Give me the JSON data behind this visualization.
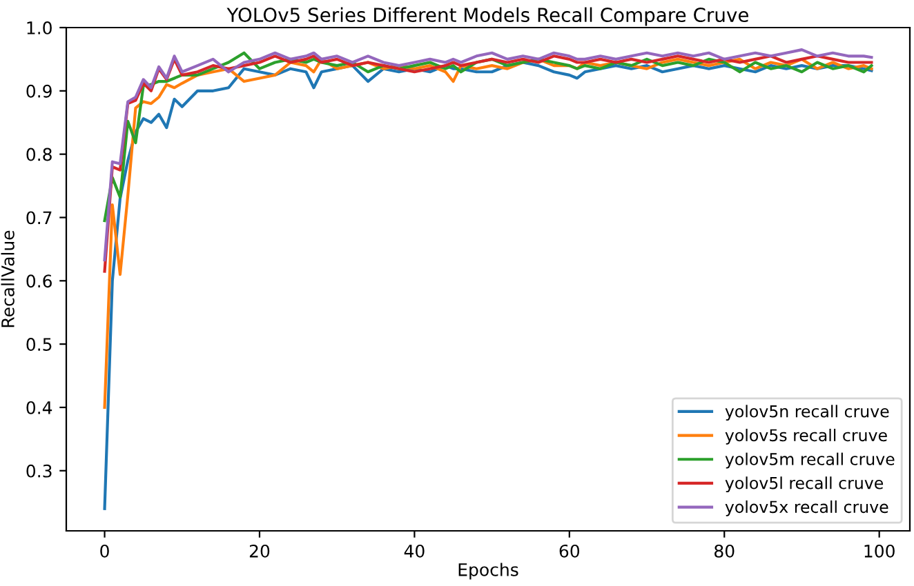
{
  "chart_data": {
    "type": "line",
    "title": "YOLOv5 Series Different Models Recall Compare Cruve",
    "xlabel": "Epochs",
    "ylabel": "RecallValue",
    "x": [
      0,
      1,
      2,
      3,
      4,
      5,
      6,
      7,
      8,
      9,
      10,
      12,
      14,
      16,
      18,
      20,
      22,
      24,
      26,
      27,
      28,
      30,
      32,
      34,
      36,
      38,
      40,
      42,
      44,
      45,
      46,
      48,
      50,
      52,
      54,
      56,
      58,
      60,
      61,
      62,
      64,
      66,
      68,
      70,
      72,
      74,
      76,
      78,
      80,
      82,
      84,
      86,
      88,
      90,
      92,
      94,
      96,
      98,
      99
    ],
    "series": [
      {
        "name": "yolov5n recall cruve",
        "color": "#1f77b4",
        "values": [
          0.24,
          0.6,
          0.73,
          0.79,
          0.835,
          0.856,
          0.85,
          0.863,
          0.842,
          0.887,
          0.875,
          0.9,
          0.9,
          0.905,
          0.935,
          0.93,
          0.925,
          0.935,
          0.93,
          0.905,
          0.93,
          0.935,
          0.94,
          0.915,
          0.935,
          0.93,
          0.935,
          0.93,
          0.94,
          0.935,
          0.935,
          0.93,
          0.93,
          0.94,
          0.945,
          0.94,
          0.93,
          0.925,
          0.92,
          0.93,
          0.935,
          0.94,
          0.935,
          0.94,
          0.93,
          0.935,
          0.94,
          0.935,
          0.94,
          0.935,
          0.93,
          0.94,
          0.935,
          0.94,
          0.935,
          0.94,
          0.94,
          0.935,
          0.932
        ]
      },
      {
        "name": "yolov5s recall cruve",
        "color": "#ff7f0e",
        "values": [
          0.4,
          0.72,
          0.61,
          0.735,
          0.873,
          0.883,
          0.88,
          0.89,
          0.91,
          0.905,
          0.912,
          0.925,
          0.93,
          0.935,
          0.915,
          0.92,
          0.925,
          0.945,
          0.94,
          0.93,
          0.95,
          0.935,
          0.94,
          0.945,
          0.935,
          0.94,
          0.935,
          0.94,
          0.93,
          0.915,
          0.94,
          0.935,
          0.94,
          0.935,
          0.945,
          0.95,
          0.94,
          0.94,
          0.935,
          0.945,
          0.94,
          0.945,
          0.94,
          0.935,
          0.945,
          0.95,
          0.945,
          0.94,
          0.945,
          0.95,
          0.935,
          0.945,
          0.94,
          0.95,
          0.935,
          0.945,
          0.935,
          0.94,
          0.935
        ]
      },
      {
        "name": "yolov5m recall cruve",
        "color": "#2ca02c",
        "values": [
          0.695,
          0.763,
          0.732,
          0.852,
          0.818,
          0.908,
          0.91,
          0.915,
          0.915,
          0.92,
          0.925,
          0.925,
          0.935,
          0.945,
          0.96,
          0.935,
          0.945,
          0.95,
          0.945,
          0.95,
          0.945,
          0.94,
          0.945,
          0.93,
          0.94,
          0.935,
          0.94,
          0.945,
          0.935,
          0.94,
          0.93,
          0.945,
          0.95,
          0.94,
          0.945,
          0.95,
          0.945,
          0.94,
          0.935,
          0.94,
          0.935,
          0.945,
          0.94,
          0.95,
          0.94,
          0.945,
          0.94,
          0.95,
          0.945,
          0.93,
          0.945,
          0.935,
          0.94,
          0.93,
          0.945,
          0.935,
          0.94,
          0.93,
          0.94
        ]
      },
      {
        "name": "yolov5l recall cruve",
        "color": "#d62728",
        "values": [
          0.615,
          0.78,
          0.775,
          0.88,
          0.885,
          0.912,
          0.9,
          0.935,
          0.918,
          0.95,
          0.925,
          0.93,
          0.94,
          0.935,
          0.94,
          0.945,
          0.955,
          0.945,
          0.95,
          0.955,
          0.945,
          0.95,
          0.94,
          0.945,
          0.94,
          0.935,
          0.93,
          0.935,
          0.94,
          0.945,
          0.94,
          0.945,
          0.95,
          0.945,
          0.95,
          0.945,
          0.955,
          0.95,
          0.945,
          0.945,
          0.95,
          0.945,
          0.95,
          0.945,
          0.95,
          0.955,
          0.95,
          0.945,
          0.95,
          0.945,
          0.95,
          0.955,
          0.945,
          0.95,
          0.955,
          0.95,
          0.945,
          0.945,
          0.945
        ]
      },
      {
        "name": "yolov5x recall cruve",
        "color": "#9467bd",
        "values": [
          0.633,
          0.788,
          0.785,
          0.883,
          0.89,
          0.918,
          0.905,
          0.938,
          0.92,
          0.955,
          0.93,
          0.94,
          0.95,
          0.93,
          0.945,
          0.95,
          0.96,
          0.95,
          0.955,
          0.96,
          0.95,
          0.955,
          0.945,
          0.955,
          0.945,
          0.94,
          0.945,
          0.95,
          0.945,
          0.95,
          0.945,
          0.955,
          0.96,
          0.95,
          0.955,
          0.95,
          0.96,
          0.955,
          0.95,
          0.95,
          0.955,
          0.95,
          0.955,
          0.96,
          0.955,
          0.96,
          0.955,
          0.96,
          0.95,
          0.955,
          0.96,
          0.955,
          0.96,
          0.965,
          0.955,
          0.96,
          0.955,
          0.955,
          0.953
        ]
      }
    ],
    "xlim": [
      -4.95,
      103.95
    ],
    "ylim": [
      0.205,
      1.0
    ],
    "xticks": [
      0,
      20,
      40,
      60,
      80,
      100
    ],
    "yticks": [
      {
        "value": 0.3,
        "label": "0.3"
      },
      {
        "value": 0.4,
        "label": "0.4"
      },
      {
        "value": 0.5,
        "label": "0.5"
      },
      {
        "value": 0.6,
        "label": "0.6"
      },
      {
        "value": 0.7,
        "label": "0.7"
      },
      {
        "value": 0.8,
        "label": "0.8"
      },
      {
        "value": 0.9,
        "label": "0.9"
      },
      {
        "value": 1.0,
        "label": "1.0"
      }
    ],
    "grid": false,
    "legend": "bottom right",
    "marker": "none",
    "line_style": "solid"
  }
}
